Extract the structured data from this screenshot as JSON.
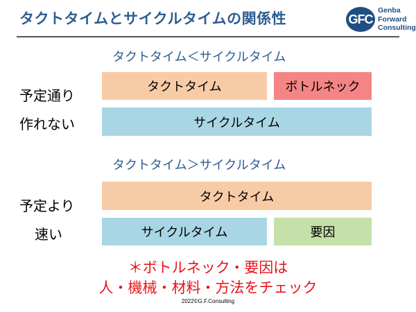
{
  "header": {
    "title": "タクトタイムとサイクルタイムの関係性",
    "logo": {
      "mark": "GFC",
      "lines": [
        "Genba",
        "Forward",
        "Consulting"
      ]
    }
  },
  "case1": {
    "heading": "タクトタイム＜サイクルタイム",
    "side_label_1": "予定通り",
    "side_label_2": "作れない",
    "takt_label": "タクトタイム",
    "bottleneck_label": "ボトルネック",
    "cycle_label": "サイクルタイム"
  },
  "case2": {
    "heading": "タクトタイム＞サイクルタイム",
    "side_label_1": "予定より",
    "side_label_2": "速い",
    "takt_label": "タクトタイム",
    "cycle_label": "サイクルタイム",
    "cause_label": "要因"
  },
  "note": {
    "line1": "＊ボトルネック・要因は",
    "line2": "人・機械・材料・方法をチェック"
  },
  "footer": {
    "copyright": "2022©G.F.Consulting"
  },
  "colors": {
    "takt": "#f8cba7",
    "cycle": "#a9d6e5",
    "bottleneck": "#f58585",
    "cause": "#c5e0a9",
    "title": "#2e5d8f",
    "note": "#e8131b"
  }
}
